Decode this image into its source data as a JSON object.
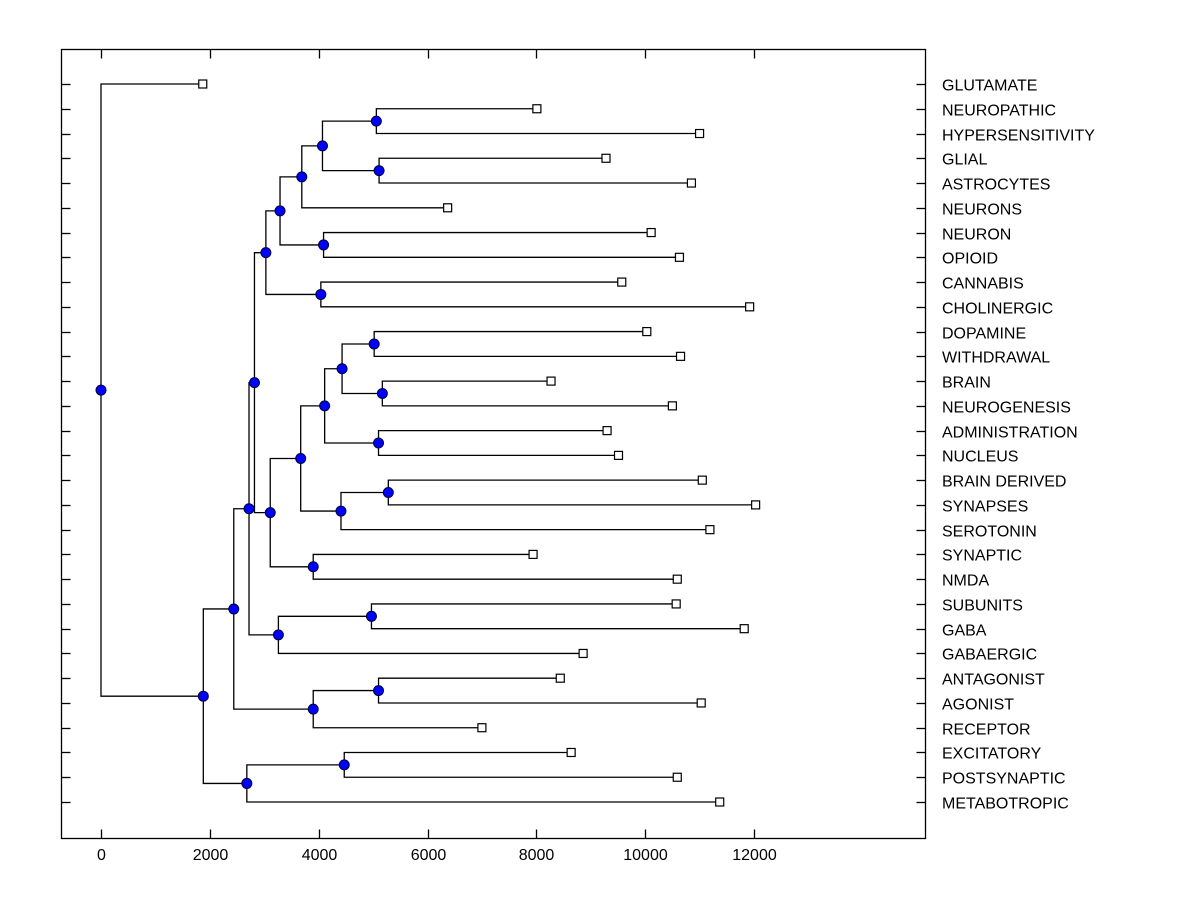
{
  "chart_data": {
    "type": "dendrogram",
    "title": "",
    "xlabel": "",
    "ylabel": "",
    "xlim": [
      -600,
      12600
    ],
    "xticks": [
      0,
      2000,
      4000,
      6000,
      8000,
      10000,
      12000
    ],
    "xtick_labels": [
      "0",
      "2000",
      "4000",
      "6000",
      "8000",
      "10000",
      "12000"
    ],
    "grid": false,
    "leaf_label_position": "right",
    "colors": {
      "node": "#0000ff",
      "line": "#000000",
      "leaf_marker_fill": "#ffffff"
    },
    "leaves": [
      {
        "label": "GLUTAMATE",
        "value": 1870
      },
      {
        "label": "NEUROPATHIC",
        "value": 8010
      },
      {
        "label": "HYPERSENSITIVITY",
        "value": 11000
      },
      {
        "label": "GLIAL",
        "value": 9280
      },
      {
        "label": "ASTROCYTES",
        "value": 10850
      },
      {
        "label": "NEURONS",
        "value": 6370
      },
      {
        "label": "NEURON",
        "value": 10110
      },
      {
        "label": "OPIOID",
        "value": 10630
      },
      {
        "label": "CANNABIS",
        "value": 9570
      },
      {
        "label": "CHOLINERGIC",
        "value": 11920
      },
      {
        "label": "DOPAMINE",
        "value": 10030
      },
      {
        "label": "WITHDRAWAL",
        "value": 10650
      },
      {
        "label": "BRAIN",
        "value": 8270
      },
      {
        "label": "NEUROGENESIS",
        "value": 10500
      },
      {
        "label": "ADMINISTRATION",
        "value": 9300
      },
      {
        "label": "NUCLEUS",
        "value": 9510
      },
      {
        "label": "BRAIN DERIVED",
        "value": 11050
      },
      {
        "label": "SYNAPSES",
        "value": 12030
      },
      {
        "label": "SEROTONIN",
        "value": 11190
      },
      {
        "label": "SYNAPTIC",
        "value": 7940
      },
      {
        "label": "NMDA",
        "value": 10590
      },
      {
        "label": "SUBUNITS",
        "value": 10570
      },
      {
        "label": "GABA",
        "value": 11820
      },
      {
        "label": "GABAERGIC",
        "value": 8860
      },
      {
        "label": "ANTAGONIST",
        "value": 8440
      },
      {
        "label": "AGONIST",
        "value": 11030
      },
      {
        "label": "RECEPTOR",
        "value": 7000
      },
      {
        "label": "EXCITATORY",
        "value": 8640
      },
      {
        "label": "POSTSYNAPTIC",
        "value": 10590
      },
      {
        "label": "METABOTROPIC",
        "value": 11370
      }
    ],
    "tree": {
      "value": 0,
      "children": [
        {
          "leaf": 0
        },
        {
          "value": 1870,
          "children": [
            {
              "value": 2440,
              "children": [
                {
                  "value": 3250,
                  "children": [
                    {
                      "value": 3340,
                      "children": [
                        {
                          "value": 3610,
                          "children": [
                            {
                              "value": 3890,
                              "children": [
                                {
                                  "value": 4370,
                                  "children": [
                                    {
                                      "value": 5090,
                                      "children": [
                                        {
                                          "leaf": 1
                                        },
                                        {
                                          "leaf": 2
                                        }
                                      ]
                                    },
                                    {
                                      "value": 5140,
                                      "children": [
                                        {
                                          "leaf": 3
                                        },
                                        {
                                          "leaf": 4
                                        }
                                      ]
                                    }
                                  ]
                                },
                                {
                                  "leaf": 5
                                }
                              ]
                            },
                            {
                              "value": 4890,
                              "children": [
                                {
                                  "leaf": 6
                                },
                                {
                                  "leaf": 7
                                }
                              ]
                            }
                          ]
                        },
                        {
                          "value": 4840,
                          "children": [
                            {
                              "leaf": 8
                            },
                            {
                              "leaf": 9
                            }
                          ]
                        }
                      ]
                    },
                    {
                      "value": 3600,
                      "children": [
                        {
                          "value": 4390,
                          "children": [
                            {
                              "value": 4900,
                              "children": [
                                {
                                  "value": 5030,
                                  "children": [
                                    {
                                      "leaf": 10
                                    },
                                    {
                                      "leaf": 11
                                    }
                                  ]
                                },
                                {
                                  "value": 5180,
                                  "children": [
                                    {
                                      "leaf": 12
                                    },
                                    {
                                      "leaf": 13
                                    }
                                  ]
                                }
                              ]
                            },
                            {
                              "value": 5120,
                              "children": [
                                {
                                  "leaf": 14
                                },
                                {
                                  "leaf": 15
                                }
                              ]
                            }
                          ]
                        },
                        {
                          "value": 4830,
                          "children": [
                            {
                              "value": 6280,
                              "children": [
                                {
                                  "leaf": 16
                                },
                                {
                                  "leaf": 17
                                }
                              ]
                            },
                            {
                              "leaf": 18
                            }
                          ]
                        }
                      ]
                    },
                    {
                      "placeholder": true
                    }
                  ]
                },
                {
                  "value": 4630,
                  "children": [
                    {
                      "value": 6000,
                      "children": [
                        {
                          "leaf": 19
                        },
                        {
                          "leaf": 20
                        }
                      ]
                    }
                  ]
                }
              ]
            }
          ]
        }
      ]
    }
  }
}
